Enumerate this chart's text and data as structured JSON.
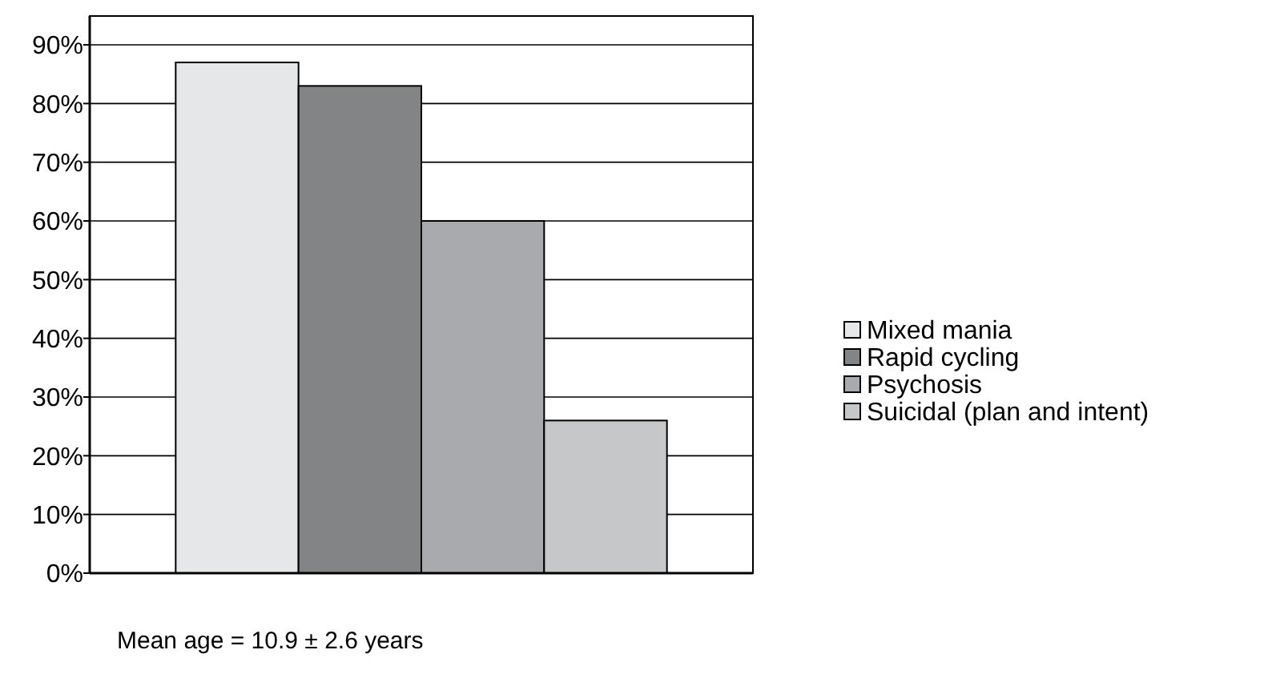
{
  "chart_data": {
    "type": "bar",
    "categories": [
      null
    ],
    "series": [
      {
        "name": "Mixed mania",
        "color": "#e6e7e9",
        "values": [
          87
        ]
      },
      {
        "name": "Rapid cycling",
        "color": "#838486",
        "values": [
          83
        ]
      },
      {
        "name": "Psychosis",
        "color": "#a9aaad",
        "values": [
          60
        ]
      },
      {
        "name": "Suicidal (plan and intent)",
        "color": "#c6c7c9",
        "values": [
          26
        ]
      }
    ],
    "ylim": [
      0,
      90
    ],
    "yticks": [
      {
        "value": 0,
        "label": "0%"
      },
      {
        "value": 10,
        "label": "10%"
      },
      {
        "value": 20,
        "label": "20%"
      },
      {
        "value": 30,
        "label": "30%"
      },
      {
        "value": 40,
        "label": "40%"
      },
      {
        "value": 50,
        "label": "50%"
      },
      {
        "value": 60,
        "label": "60%"
      },
      {
        "value": 70,
        "label": "70%"
      },
      {
        "value": 80,
        "label": "80%"
      },
      {
        "value": 90,
        "label": "90%"
      }
    ],
    "grid": "y",
    "legend": "right",
    "annotations": [
      "Mean age = 10.9 ± 2.6 years"
    ]
  }
}
